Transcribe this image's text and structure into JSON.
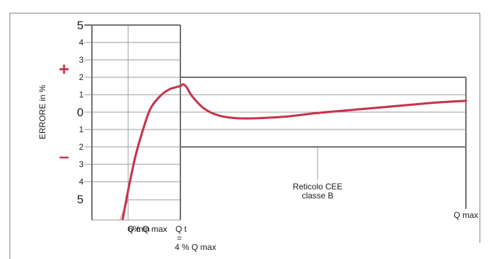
{
  "chart_data": {
    "type": "line",
    "title": "",
    "ylabel": "ERRORE in %",
    "sign_plus": "+",
    "sign_minus": "–",
    "ylim": [
      -5,
      5
    ],
    "y_tick_labels": [
      {
        "v": 5,
        "t": "5"
      },
      {
        "v": 4,
        "t": "4"
      },
      {
        "v": 3,
        "t": "3"
      },
      {
        "v": 2,
        "t": "2"
      },
      {
        "v": 1,
        "t": "1"
      },
      {
        "v": 0,
        "t": "0"
      },
      {
        "v": -1,
        "t": "1"
      },
      {
        "v": -2,
        "t": "2"
      },
      {
        "v": -3,
        "t": "3"
      },
      {
        "v": -4,
        "t": "4"
      },
      {
        "v": -5,
        "t": "5"
      }
    ],
    "grid": true,
    "x_labels": {
      "qmin": "Q min",
      "qt": "Q t",
      "percent_qmax": "6% Q max",
      "qt_eq": "=",
      "qt_value": "4 % Q max",
      "qmax": "Q max"
    },
    "annotation": {
      "line1": "Reticolo CEE",
      "line2": "classe B"
    },
    "tolerance_band": [
      {
        "x_from": "Q min",
        "x_to": "Q t",
        "lower": -5,
        "upper": 5
      },
      {
        "x_from": "Q t",
        "x_to": "Q max",
        "lower": -2,
        "upper": 2
      }
    ],
    "series": [
      {
        "color": "#c5364a",
        "x_qmax_pct": [
          0.9,
          1.2,
          1.6,
          2.0,
          2.4,
          2.9,
          3.4,
          4.0,
          5.0,
          6.2,
          8,
          12,
          17,
          23,
          30,
          40,
          50,
          60,
          70,
          80,
          90,
          100
        ],
        "y": [
          -6.2,
          -4.5,
          -2.5,
          -1.0,
          0.2,
          0.9,
          1.3,
          1.5,
          1.6,
          1.4,
          0.9,
          0.2,
          -0.2,
          -0.35,
          -0.35,
          -0.25,
          -0.05,
          0.1,
          0.25,
          0.4,
          0.55,
          0.65
        ]
      }
    ],
    "colors": {
      "curve": "#c5364a",
      "signs": "#c5364a",
      "grid": "#9a9a9a",
      "frame": "#6f6f6f"
    }
  }
}
